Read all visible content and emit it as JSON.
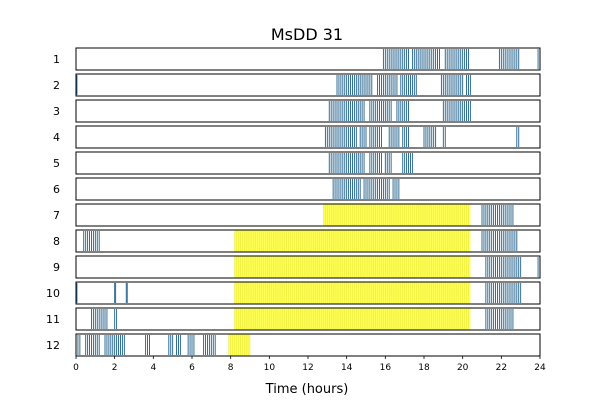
{
  "chart_data": {
    "type": "actogram",
    "title": "MsDD 31",
    "xlabel": "Time (hours)",
    "ylabel": "",
    "xlim": [
      0,
      24
    ],
    "x_ticks": [
      "0",
      "2",
      "4",
      "6",
      "8",
      "10",
      "12",
      "14",
      "16",
      "18",
      "20",
      "22",
      "24"
    ],
    "grid": false,
    "colors": {
      "activity": "#1f5f8b",
      "highlight": "#ffff55",
      "frame": "#000000"
    },
    "rows": [
      {
        "label": "1",
        "highlight": [],
        "activity": [
          [
            15.9,
            17.2
          ],
          [
            17.4,
            18.8
          ],
          [
            19.1,
            20.3
          ],
          [
            21.9,
            22.9
          ],
          [
            23.9,
            24.0
          ]
        ]
      },
      {
        "label": "2",
        "highlight": [],
        "activity": [
          [
            0.0,
            0.05
          ],
          [
            13.5,
            15.3
          ],
          [
            15.6,
            16.6
          ],
          [
            16.8,
            17.6
          ],
          [
            18.9,
            20.0
          ],
          [
            20.2,
            20.4
          ]
        ]
      },
      {
        "label": "3",
        "highlight": [],
        "activity": [
          [
            13.1,
            14.9
          ],
          [
            15.2,
            16.3
          ],
          [
            16.6,
            17.2
          ],
          [
            19.0,
            20.4
          ]
        ]
      },
      {
        "label": "4",
        "highlight": [],
        "activity": [
          [
            12.9,
            14.5
          ],
          [
            14.7,
            15.0
          ],
          [
            15.2,
            15.8
          ],
          [
            16.2,
            16.7
          ],
          [
            16.9,
            17.2
          ],
          [
            18.0,
            18.6
          ],
          [
            19.0,
            19.1
          ],
          [
            22.8,
            22.9
          ]
        ]
      },
      {
        "label": "5",
        "highlight": [],
        "activity": [
          [
            13.1,
            14.9
          ],
          [
            15.2,
            15.8
          ],
          [
            16.0,
            16.3
          ],
          [
            16.9,
            17.4
          ]
        ]
      },
      {
        "label": "6",
        "highlight": [],
        "activity": [
          [
            13.3,
            14.7
          ],
          [
            14.9,
            15.5
          ],
          [
            15.6,
            16.2
          ],
          [
            16.4,
            16.7
          ]
        ]
      },
      {
        "label": "7",
        "highlight": [
          [
            12.8,
            20.4
          ]
        ],
        "activity": [
          [
            21.0,
            22.6
          ]
        ]
      },
      {
        "label": "8",
        "highlight": [
          [
            8.2,
            20.4
          ]
        ],
        "activity": [
          [
            0.4,
            1.2
          ],
          [
            21.0,
            22.8
          ]
        ]
      },
      {
        "label": "9",
        "highlight": [
          [
            8.2,
            20.4
          ]
        ],
        "activity": [
          [
            21.2,
            23.0
          ],
          [
            23.9,
            24.0
          ]
        ]
      },
      {
        "label": "10",
        "highlight": [
          [
            8.2,
            20.4
          ]
        ],
        "activity": [
          [
            0.0,
            0.05
          ],
          [
            2.0,
            2.05
          ],
          [
            2.6,
            2.65
          ],
          [
            21.2,
            23.0
          ]
        ]
      },
      {
        "label": "11",
        "highlight": [
          [
            8.2,
            20.4
          ]
        ],
        "activity": [
          [
            0.8,
            1.6
          ],
          [
            2.0,
            2.1
          ],
          [
            21.2,
            22.6
          ]
        ]
      },
      {
        "label": "12",
        "highlight": [
          [
            7.9,
            9.0
          ]
        ],
        "activity": [
          [
            0.0,
            0.2
          ],
          [
            0.5,
            1.2
          ],
          [
            1.5,
            1.7
          ],
          [
            1.8,
            2.5
          ],
          [
            3.6,
            3.8
          ],
          [
            4.8,
            5.0
          ],
          [
            5.2,
            5.4
          ],
          [
            5.8,
            6.1
          ],
          [
            6.6,
            7.2
          ]
        ]
      }
    ]
  }
}
